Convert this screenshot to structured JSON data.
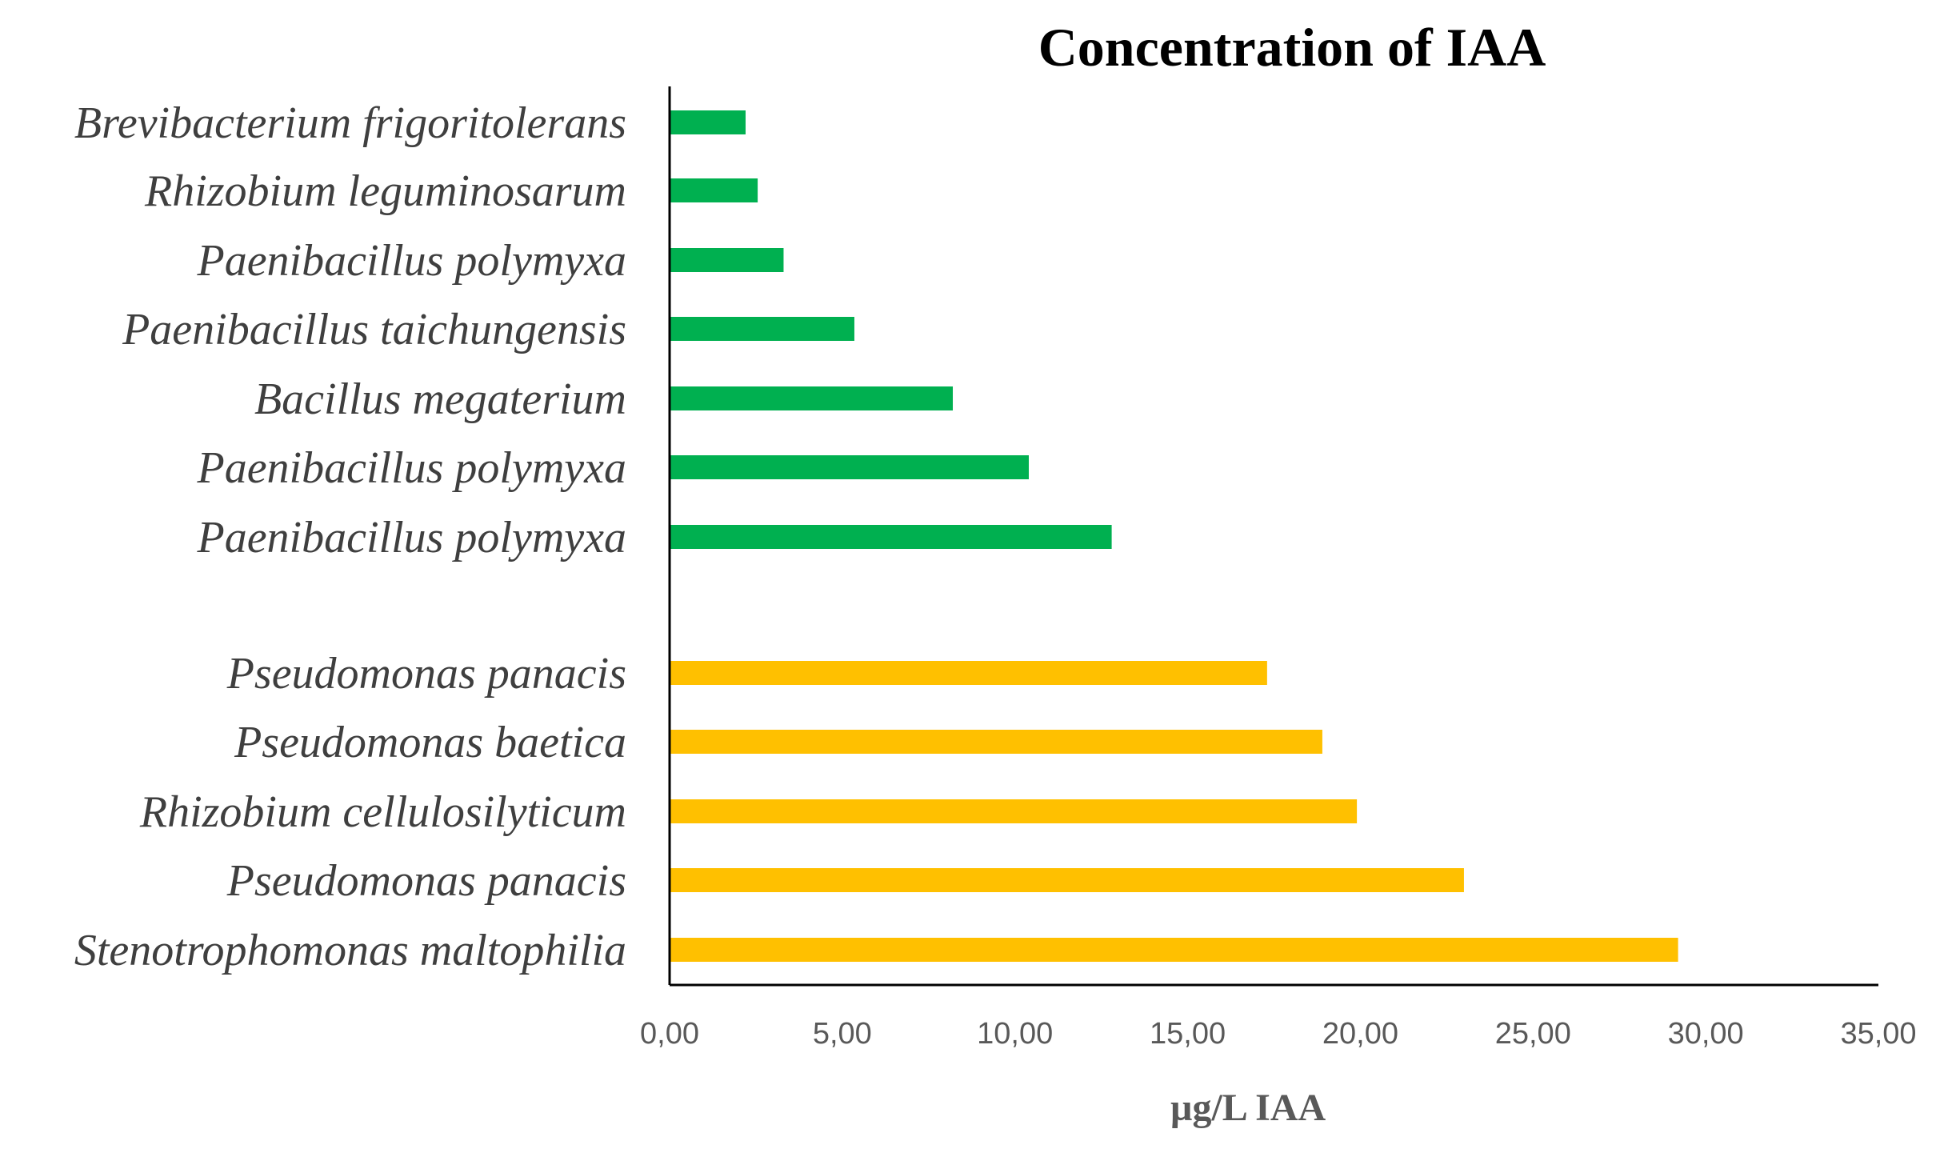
{
  "chart_data": {
    "type": "bar",
    "orientation": "horizontal",
    "title": "Concentration of IAA",
    "xlabel": "µg/L IAA",
    "ylabel": "",
    "xlim": [
      0,
      35
    ],
    "x_ticks": [
      "0,00",
      "5,00",
      "10,00",
      "15,00",
      "20,00",
      "25,00",
      "30,00",
      "35,00"
    ],
    "grid": false,
    "legend": "none",
    "groups": [
      {
        "color": "#00b050",
        "categories": [
          "Brevibacterium frigoritolerans",
          "Rhizobium leguminosarum",
          "Paenibacillus polymyxa",
          "Paenibacillus taichungensis",
          "Bacillus megaterium",
          "Paenibacillus polymyxa",
          "Paenibacillus polymyxa"
        ],
        "values": [
          2.2,
          2.55,
          3.3,
          5.35,
          8.2,
          10.4,
          12.8
        ]
      },
      {
        "color": "#ffc000",
        "categories": [
          "Pseudomonas panacis",
          "Pseudomonas baetica",
          "Rhizobium cellulosilyticum",
          "Pseudomonas panacis",
          "Stenotrophomonas maltophilia"
        ],
        "values": [
          17.3,
          18.9,
          19.9,
          23.0,
          29.2
        ]
      }
    ]
  }
}
